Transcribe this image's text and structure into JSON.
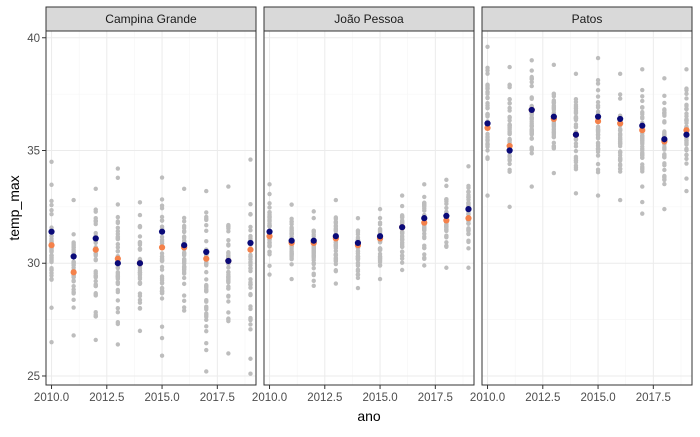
{
  "chart_data": {
    "type": "scatter",
    "xlabel": "ano",
    "ylabel": "temp_max",
    "xlim": [
      2009.75,
      2019.25
    ],
    "ylim": [
      24.6,
      40.3
    ],
    "x_ticks": [
      2010.0,
      2012.5,
      2015.0,
      2017.5
    ],
    "x_tick_labels": [
      "2010.0",
      "2012.5",
      "2015.0",
      "2017.5"
    ],
    "y_ticks": [
      25,
      30,
      35,
      40
    ],
    "y_tick_labels": [
      "25",
      "30",
      "35",
      "40"
    ],
    "grid": true,
    "colors": {
      "raw": "#bdbdbd",
      "series_orange": "#f4814a",
      "series_navy": "#0a0a78",
      "strip_bg": "#d9d9d9",
      "grid_major": "#ebebeb",
      "grid_minor": "#f5f5f5",
      "border": "#333333"
    },
    "panels": [
      {
        "label": "Campina Grande",
        "years": [
          2010,
          2011,
          2012,
          2013,
          2014,
          2015,
          2016,
          2017,
          2018,
          2019
        ],
        "orange": [
          30.8,
          29.6,
          30.6,
          30.2,
          30.0,
          30.7,
          30.7,
          30.2,
          30.1,
          30.6
        ],
        "navy": [
          31.4,
          30.3,
          31.1,
          30.0,
          30.0,
          31.4,
          30.8,
          30.5,
          30.1,
          30.9
        ],
        "raw_range": [
          [
            26.5,
            34.5
          ],
          [
            26.8,
            32.8
          ],
          [
            26.6,
            33.3
          ],
          [
            26.4,
            34.2
          ],
          [
            27.0,
            32.7
          ],
          [
            25.9,
            33.8
          ],
          [
            27.9,
            33.3
          ],
          [
            25.2,
            33.2
          ],
          [
            26.0,
            33.4
          ],
          [
            25.1,
            34.6
          ]
        ]
      },
      {
        "label": "João Pessoa",
        "years": [
          2010,
          2011,
          2012,
          2013,
          2014,
          2015,
          2016,
          2017,
          2018,
          2019
        ],
        "orange": [
          31.2,
          30.9,
          30.9,
          31.1,
          30.8,
          31.1,
          31.6,
          31.8,
          31.9,
          32.0
        ],
        "navy": [
          31.4,
          31.0,
          31.0,
          31.2,
          30.9,
          31.2,
          31.6,
          32.0,
          32.1,
          32.4
        ],
        "raw_range": [
          [
            29.5,
            33.5
          ],
          [
            29.3,
            32.6
          ],
          [
            29.0,
            32.3
          ],
          [
            29.1,
            32.8
          ],
          [
            28.9,
            32.0
          ],
          [
            29.3,
            32.4
          ],
          [
            29.7,
            33.0
          ],
          [
            29.9,
            33.5
          ],
          [
            29.8,
            33.7
          ],
          [
            29.8,
            34.3
          ]
        ]
      },
      {
        "label": "Patos",
        "years": [
          2010,
          2011,
          2012,
          2013,
          2014,
          2015,
          2016,
          2017,
          2018,
          2019
        ],
        "orange": [
          36.0,
          35.2,
          36.8,
          36.4,
          35.7,
          36.3,
          36.2,
          35.9,
          35.4,
          35.9
        ],
        "navy": [
          36.2,
          35.0,
          36.8,
          36.5,
          35.7,
          36.5,
          36.4,
          36.1,
          35.5,
          35.7
        ],
        "raw_range": [
          [
            33.0,
            39.6
          ],
          [
            32.5,
            38.7
          ],
          [
            33.4,
            39.0
          ],
          [
            34.0,
            38.8
          ],
          [
            33.1,
            38.4
          ],
          [
            33.0,
            39.1
          ],
          [
            32.8,
            38.4
          ],
          [
            32.2,
            38.6
          ],
          [
            32.4,
            38.2
          ],
          [
            33.2,
            38.6
          ]
        ]
      }
    ]
  }
}
